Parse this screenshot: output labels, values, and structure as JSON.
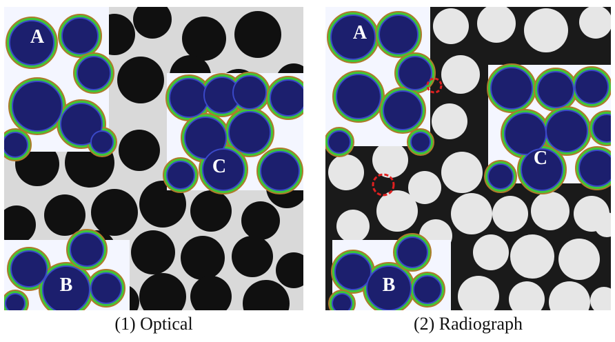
{
  "panels": [
    {
      "id": "optical",
      "caption": "(1) Optical",
      "regions": [
        {
          "label": "A"
        },
        {
          "label": "B"
        },
        {
          "label": "C"
        }
      ]
    },
    {
      "id": "radiograph",
      "caption": "(2) Radiograph",
      "regions": [
        {
          "label": "A"
        },
        {
          "label": "B"
        },
        {
          "label": "C"
        }
      ]
    }
  ],
  "colors": {
    "optical_background": "#d9d9d9",
    "optical_bead": "#101010",
    "radiograph_background": "#1a1a1a",
    "radiograph_bead": "#e6e6e6",
    "overlay_bead": "#1c1f6e",
    "overlay_film": "#3ec63a",
    "overlay_ring": "#b07a2a",
    "marker_circle": "#e02020"
  }
}
